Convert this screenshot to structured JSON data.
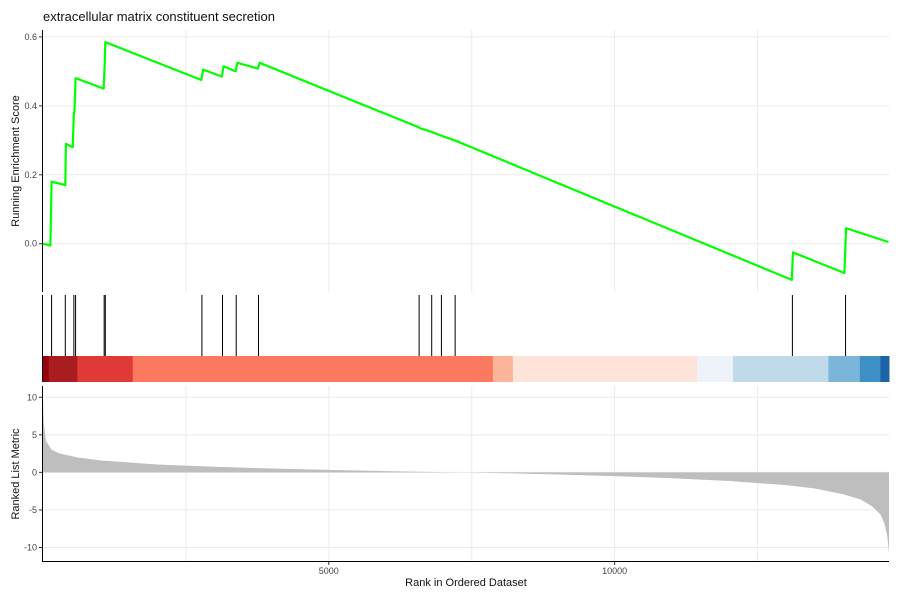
{
  "chart_data": {
    "type": "line",
    "title": "extracellular matrix constituent secretion",
    "xlabel": "Rank in Ordered Dataset",
    "xlim": [
      0,
      14800
    ],
    "x_ticks": [
      5000,
      10000
    ],
    "x_tick_labels": [
      "5000",
      "10000"
    ],
    "grid": true,
    "panels": {
      "running_score": {
        "ylabel": "Running Enrichment Score",
        "ylim": [
          -0.14,
          0.62
        ],
        "y_ticks": [
          0.0,
          0.2,
          0.4,
          0.6
        ],
        "y_tick_labels": [
          "0.0",
          "0.2",
          "0.4",
          "0.6"
        ],
        "line_color": "#00ff00",
        "series": [
          {
            "x": [
              0,
              130,
              150,
              390,
              400,
              520,
              540,
              550,
              570,
              580,
              1060,
              1080,
              1090,
              2770,
              2800,
              3130,
              3160,
              3370,
              3400,
              3760,
              3790,
              6570,
              6600,
              6790,
              6820,
              6960,
              6990,
              7200,
              13100,
              13120,
              14020,
              14050,
              14790
            ],
            "y": [
              0.0,
              -0.005,
              0.18,
              0.17,
              0.29,
              0.28,
              0.38,
              0.38,
              0.48,
              0.48,
              0.45,
              0.52,
              0.585,
              0.475,
              0.505,
              0.485,
              0.515,
              0.5,
              0.525,
              0.508,
              0.525,
              0.338,
              0.335,
              0.325,
              0.323,
              0.314,
              0.312,
              0.3,
              -0.105,
              -0.025,
              -0.085,
              0.045,
              0.005
            ]
          }
        ]
      },
      "hits": {
        "positions": [
          150,
          390,
          540,
          570,
          1070,
          1090,
          2780,
          3140,
          3380,
          3770,
          6580,
          6800,
          6970,
          7210,
          13110,
          14040
        ],
        "color": "#000000"
      },
      "rank_color_bar": {
        "segments": [
          {
            "start": 0,
            "end": 100,
            "color": "#99000d"
          },
          {
            "start": 100,
            "end": 600,
            "color": "#a91c20"
          },
          {
            "start": 600,
            "end": 1570,
            "color": "#e03a36"
          },
          {
            "start": 1570,
            "end": 7870,
            "color": "#fb7a5f"
          },
          {
            "start": 7870,
            "end": 8220,
            "color": "#fcb49b"
          },
          {
            "start": 8220,
            "end": 11440,
            "color": "#fde3d8"
          },
          {
            "start": 11440,
            "end": 12070,
            "color": "#eef3fa"
          },
          {
            "start": 12070,
            "end": 13740,
            "color": "#c0dae9"
          },
          {
            "start": 13740,
            "end": 14290,
            "color": "#7bb5d9"
          },
          {
            "start": 14290,
            "end": 14650,
            "color": "#3e8fc6"
          },
          {
            "start": 14650,
            "end": 14800,
            "color": "#1c63a8"
          }
        ]
      },
      "ranked_metric": {
        "ylabel": "Ranked List Metric",
        "ylim": [
          -11.8,
          11.5
        ],
        "y_ticks": [
          10,
          5,
          0,
          -5,
          -10
        ],
        "y_tick_labels": [
          "10",
          "5",
          "0",
          "-5",
          "-10"
        ],
        "fill_color": "#bebebe",
        "series": [
          {
            "x": [
              0,
              10,
              50,
              150,
              300,
              600,
              1000,
              2000,
              3000,
              4000,
              5000,
              6000,
              7000,
              7500,
              8000,
              9000,
              10000,
              11000,
              12000,
              13000,
              13500,
              14000,
              14300,
              14500,
              14650,
              14720,
              14770,
              14800
            ],
            "y": [
              10.2,
              6.8,
              4.2,
              3.0,
              2.5,
              2.0,
              1.6,
              1.05,
              0.75,
              0.52,
              0.33,
              0.17,
              0.04,
              -0.02,
              -0.1,
              -0.28,
              -0.5,
              -0.78,
              -1.15,
              -1.7,
              -2.15,
              -2.9,
              -3.6,
              -4.5,
              -5.6,
              -6.8,
              -8.5,
              -10.8
            ]
          }
        ]
      }
    }
  }
}
